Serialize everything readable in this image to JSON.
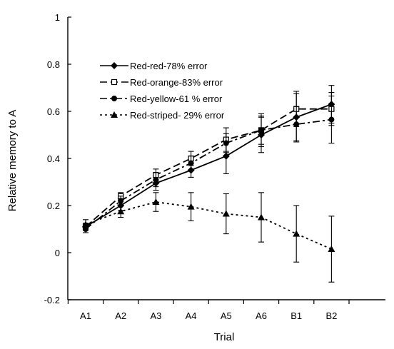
{
  "chart_data": {
    "type": "line",
    "title": "",
    "xlabel": "Trial",
    "ylabel": "Relative memory to A",
    "categories": [
      "A1",
      "A2",
      "A3",
      "A4",
      "A5",
      "A6",
      "B1",
      "B2"
    ],
    "ylim": [
      -0.2,
      1
    ],
    "yticks": [
      -0.2,
      0,
      0.2,
      0.4,
      0.6,
      0.8,
      1
    ],
    "ytick_labels": [
      "-0.2",
      "0",
      "0.2",
      "0.4",
      "0.6",
      "0.8",
      "1"
    ],
    "grid": false,
    "legend_position": "top-left",
    "series": [
      {
        "name": "Red-red-78% error",
        "line_style": "solid",
        "marker": "diamond",
        "values": [
          0.11,
          0.2,
          0.295,
          0.35,
          0.41,
          0.5,
          0.575,
          0.63
        ],
        "errors": [
          0.015,
          0.02,
          0.03,
          0.03,
          0.075,
          0.075,
          0.1,
          0.08
        ]
      },
      {
        "name": "Red-orange-83% error",
        "line_style": "dashed",
        "marker": "open-square",
        "values": [
          0.11,
          0.24,
          0.33,
          0.4,
          0.48,
          0.52,
          0.61,
          0.61
        ],
        "errors": [
          0.015,
          0.015,
          0.025,
          0.03,
          0.05,
          0.07,
          0.075,
          0.07
        ]
      },
      {
        "name": "Red-yellow-61 % error",
        "line_style": "dash-dot",
        "marker": "filled-circle",
        "values": [
          0.1,
          0.22,
          0.31,
          0.38,
          0.465,
          0.52,
          0.545,
          0.565
        ],
        "errors": [
          0.015,
          0.02,
          0.03,
          0.03,
          0.04,
          0.06,
          0.075,
          0.1
        ]
      },
      {
        "name": "Red-striped- 29% error",
        "line_style": "dotted",
        "marker": "filled-triangle",
        "values": [
          0.12,
          0.175,
          0.215,
          0.195,
          0.165,
          0.15,
          0.08,
          0.015
        ],
        "errors": [
          0.02,
          0.025,
          0.04,
          0.06,
          0.085,
          0.105,
          0.12,
          0.14
        ]
      }
    ]
  }
}
